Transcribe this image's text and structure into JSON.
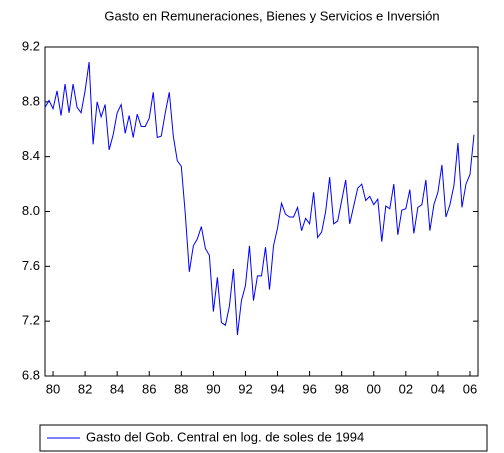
{
  "chart_data": {
    "type": "line",
    "title": "Gasto en Remuneraciones, Bienes y Servicios e Inversión",
    "x": [
      1980,
      1980.25,
      1980.5,
      1980.75,
      1981,
      1981.25,
      1981.5,
      1981.75,
      1982,
      1982.25,
      1982.5,
      1982.75,
      1983,
      1983.25,
      1983.5,
      1983.75,
      1984,
      1984.25,
      1984.5,
      1984.75,
      1985,
      1985.25,
      1985.5,
      1985.75,
      1986,
      1986.25,
      1986.5,
      1986.75,
      1987,
      1987.25,
      1987.5,
      1987.75,
      1988,
      1988.25,
      1988.5,
      1988.75,
      1989,
      1989.25,
      1989.5,
      1989.75,
      1990,
      1990.25,
      1990.5,
      1990.75,
      1991,
      1991.25,
      1991.5,
      1991.75,
      1992,
      1992.25,
      1992.5,
      1992.75,
      1993,
      1993.25,
      1993.5,
      1993.75,
      1994,
      1994.25,
      1994.5,
      1994.75,
      1995,
      1995.25,
      1995.5,
      1995.75,
      1996,
      1996.25,
      1996.5,
      1996.75,
      1997,
      1997.25,
      1997.5,
      1997.75,
      1998,
      1998.25,
      1998.5,
      1998.75,
      1999,
      1999.25,
      1999.5,
      1999.75,
      2000,
      2000.25,
      2000.5,
      2000.75,
      2001,
      2001.25,
      2001.5,
      2001.75,
      2002,
      2002.25,
      2002.5,
      2002.75,
      2003,
      2003.25,
      2003.5,
      2003.75,
      2004,
      2004.25,
      2004.5,
      2004.75,
      2005,
      2005.25,
      2005.5,
      2005.75,
      2006,
      2006.25,
      2006.5,
      2006.75
    ],
    "series": [
      {
        "name": "Gasto del Gob. Central en log. de soles de 1994",
        "color": "#0000ff",
        "values": [
          8.76,
          8.81,
          8.75,
          8.88,
          8.7,
          8.93,
          8.72,
          8.93,
          8.76,
          8.72,
          8.88,
          9.09,
          8.49,
          8.8,
          8.69,
          8.78,
          8.45,
          8.56,
          8.72,
          8.78,
          8.57,
          8.7,
          8.54,
          8.71,
          8.62,
          8.62,
          8.68,
          8.87,
          8.54,
          8.55,
          8.72,
          8.87,
          8.55,
          8.37,
          8.33,
          7.98,
          7.56,
          7.75,
          7.8,
          7.89,
          7.73,
          7.68,
          7.27,
          7.52,
          7.19,
          7.17,
          7.31,
          7.58,
          7.1,
          7.35,
          7.46,
          7.75,
          7.35,
          7.53,
          7.53,
          7.74,
          7.43,
          7.75,
          7.88,
          8.06,
          7.98,
          7.96,
          7.96,
          8.03,
          7.86,
          7.95,
          7.91,
          8.14,
          7.81,
          7.85,
          8.0,
          8.25,
          7.91,
          7.93,
          8.08,
          8.23,
          7.91,
          8.04,
          8.17,
          8.2,
          8.08,
          8.11,
          8.05,
          8.09,
          7.78,
          8.04,
          8.02,
          8.2,
          7.83,
          8.01,
          8.02,
          8.16,
          7.84,
          8.03,
          8.05,
          8.23,
          7.86,
          8.05,
          8.14,
          8.34,
          7.96,
          8.05,
          8.19,
          8.5,
          8.03,
          8.2,
          8.27,
          8.56
        ]
      }
    ],
    "xlim": [
      1980,
      2007
    ],
    "xticks": [
      {
        "value": 1980.5,
        "label": "80"
      },
      {
        "value": 1982.5,
        "label": "82"
      },
      {
        "value": 1984.5,
        "label": "84"
      },
      {
        "value": 1986.5,
        "label": "86"
      },
      {
        "value": 1988.5,
        "label": "88"
      },
      {
        "value": 1990.5,
        "label": "90"
      },
      {
        "value": 1992.5,
        "label": "92"
      },
      {
        "value": 1994.5,
        "label": "94"
      },
      {
        "value": 1996.5,
        "label": "96"
      },
      {
        "value": 1998.5,
        "label": "98"
      },
      {
        "value": 2000.5,
        "label": "00"
      },
      {
        "value": 2002.5,
        "label": "02"
      },
      {
        "value": 2004.5,
        "label": "04"
      },
      {
        "value": 2006.5,
        "label": "06"
      }
    ],
    "ylim": [
      6.8,
      9.2
    ],
    "yticks": [
      6.8,
      7.2,
      7.6,
      {
        "value": 8,
        "label": "8.0"
      },
      8.4,
      8.8,
      9.2
    ],
    "grid": false,
    "legend": "bottom"
  }
}
